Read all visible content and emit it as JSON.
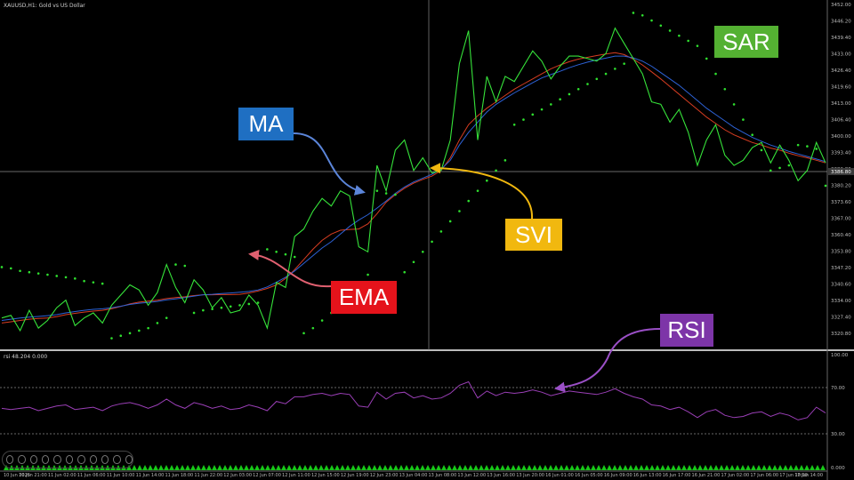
{
  "window": {
    "main_header": "XAUUSD,H1: Gold vs US Dollar",
    "sub_header": "rsi 48.204 0.000"
  },
  "annotations": {
    "ma": "MA",
    "ema": "EMA",
    "svi": "SVI",
    "sar": "SAR",
    "rsi": "RSI"
  },
  "colors": {
    "ma_box": "#1f6fc2",
    "ema_box": "#e5131b",
    "svi_box": "#f1b80f",
    "sar_box": "#54b132",
    "rsi_box": "#7d35a8",
    "price_line": "#36e33a",
    "ma_line": "#2d62d6",
    "ema_line": "#d83d22",
    "sar_dots": "#2fe02f",
    "rsi_line": "#9a3fb6"
  },
  "toolbar_icons": [
    "back-icon",
    "play-icon",
    "forward-icon",
    "pencil-icon",
    "crop-icon",
    "flag-icon",
    "box-icon",
    "rotate-icon",
    "more-icon",
    "smile-icon",
    "expand-icon"
  ],
  "chart_data": [
    {
      "type": "line",
      "panel": "price",
      "y_ticks": [
        "3452.00",
        "3446.20",
        "3439.40",
        "3433.00",
        "3426.40",
        "3419.60",
        "3413.00",
        "3406.40",
        "3400.00",
        "3393.40",
        "3386.80",
        "3380.20",
        "3373.60",
        "3367.00",
        "3360.40",
        "3353.80",
        "3347.20",
        "3340.60",
        "3334.00",
        "3327.40",
        "3320.80"
      ],
      "crosshair_price": "3386.80",
      "x_ticks": [
        "10 Jun 2025",
        "10 Jun 21:00",
        "11 Jun 02:00",
        "11 Jun 06:00",
        "11 Jun 10:00",
        "11 Jun 14:00",
        "11 Jun 18:00",
        "11 Jun 22:00",
        "12 Jun 03:00",
        "12 Jun 07:00",
        "12 Jun 11:00",
        "12 Jun 15:00",
        "12 Jun 19:00",
        "12 Jun 23:00",
        "13 Jun 04:00",
        "13 Jun 08:00",
        "13 Jun 12:00",
        "13 Jun 16:00",
        "13 Jun 20:00",
        "16 Jun 01:00",
        "16 Jun 05:00",
        "16 Jun 09:00",
        "16 Jun 13:00",
        "16 Jun 17:00",
        "16 Jun 21:00",
        "17 Jun 02:00",
        "17 Jun 06:00",
        "17 Jun 10:00",
        "17 Jun 14:00"
      ],
      "series": [
        {
          "values": [
            3328,
            3329,
            3323,
            3331,
            3324,
            3327,
            3332,
            3335,
            3325,
            3328,
            3330,
            3326,
            3333,
            3337,
            3341,
            3339,
            3333,
            3338,
            3349,
            3340,
            3334,
            3343,
            3339,
            3332,
            3336,
            3330,
            3331,
            3337,
            3333,
            3324,
            3342,
            3340,
            3360,
            3363,
            3370,
            3375,
            3372,
            3378,
            3376,
            3356,
            3354,
            3388,
            3378,
            3394,
            3398,
            3386,
            3391,
            3385,
            3386,
            3398,
            3428,
            3441,
            3398,
            3423,
            3413,
            3423,
            3421,
            3427,
            3433,
            3429,
            3422,
            3427,
            3431,
            3431,
            3430,
            3429,
            3432,
            3442,
            3436,
            3430,
            3424,
            3413,
            3412,
            3405,
            3410,
            3401,
            3388,
            3398,
            3404,
            3392,
            3388,
            3390,
            3395,
            3397,
            3389,
            3396,
            3390,
            3382,
            3386,
            3397,
            3389
          ]
        },
        {
          "values": [
            3327,
            3327.5,
            3328,
            3328.3,
            3328.6,
            3328.9,
            3329.3,
            3330,
            3330.5,
            3331,
            3331.4,
            3331.6,
            3332,
            3332.6,
            3333.3,
            3333.8,
            3334.1,
            3334.5,
            3335.1,
            3335.5,
            3336,
            3336.6,
            3337.1,
            3337.3,
            3337.6,
            3337.8,
            3338.1,
            3338.4,
            3339,
            3340.2,
            3342,
            3344,
            3346.5,
            3349.5,
            3352.5,
            3355.5,
            3358,
            3361,
            3364,
            3366.5,
            3368.6,
            3371.2,
            3374,
            3377,
            3379.5,
            3381.5,
            3383,
            3384.5,
            3386.5,
            3390,
            3396,
            3401,
            3405,
            3409,
            3412,
            3414.3,
            3416.5,
            3418.5,
            3420.5,
            3422.4,
            3423.7,
            3425,
            3426.4,
            3427.6,
            3428.6,
            3429.5,
            3430.2,
            3431,
            3431,
            3430.3,
            3429,
            3427,
            3424.5,
            3422,
            3419.5,
            3416.5,
            3413.5,
            3410.5,
            3408,
            3405.5,
            3403,
            3401,
            3399,
            3397.5,
            3396,
            3394.8,
            3393.5,
            3392.5,
            3391.5,
            3390.5,
            3389.5
          ]
        },
        {
          "values": [
            3326,
            3326.5,
            3327,
            3327.5,
            3327.8,
            3328,
            3328.5,
            3329.3,
            3329.8,
            3330.3,
            3330.7,
            3331,
            3331.6,
            3332.5,
            3333.5,
            3334.2,
            3334.6,
            3335,
            3335.6,
            3336,
            3336.3,
            3336.8,
            3337.1,
            3337.1,
            3337.2,
            3337.2,
            3337.3,
            3337.8,
            3338.6,
            3339.6,
            3341,
            3343.5,
            3347,
            3351,
            3355,
            3358.5,
            3361,
            3362.5,
            3362.8,
            3363,
            3365,
            3369,
            3373.5,
            3376.5,
            3379,
            3381,
            3382.5,
            3383.8,
            3386,
            3391,
            3398,
            3404,
            3407.5,
            3410.5,
            3413,
            3415.5,
            3418,
            3420,
            3422,
            3424,
            3426,
            3427.5,
            3428.8,
            3429.8,
            3430.5,
            3431.2,
            3431.8,
            3432.3,
            3431.6,
            3429.8,
            3427.5,
            3424.8,
            3422,
            3419,
            3416,
            3413,
            3410,
            3407,
            3404.5,
            3402,
            3400,
            3398.5,
            3397,
            3396,
            3394.8,
            3394,
            3392.8,
            3391.8,
            3391,
            3390,
            3389
          ]
        },
        {
          "values": [
            3348,
            3347.5,
            3346.5,
            3346,
            3345.5,
            3345,
            3344.5,
            3344,
            3343.5,
            3342.5,
            3342,
            3341.5,
            3320,
            3321,
            3322,
            3323,
            3324,
            3326,
            3328,
            3349,
            3348.5,
            3330,
            3331,
            3331.5,
            3332,
            3332.5,
            3333,
            3333.5,
            3334,
            3355,
            3354,
            3353,
            3352,
            3322,
            3324,
            3327,
            3330,
            3334,
            3338,
            3342,
            3345,
            3378,
            3377,
            3376.5,
            3346,
            3350,
            3354,
            3358,
            3362,
            3366,
            3370,
            3374,
            3378,
            3382,
            3386,
            3390,
            3404,
            3406,
            3408,
            3410,
            3412,
            3414,
            3416,
            3418,
            3420,
            3422,
            3424,
            3426,
            3428,
            3448,
            3447,
            3445,
            3443,
            3441,
            3439,
            3437,
            3435,
            3430,
            3424,
            3418,
            3412,
            3406,
            3400,
            3394,
            3386,
            3387,
            3388,
            3396,
            3395.5,
            3394.5,
            3380
          ]
        },
        {
          "values": [
            52,
            51,
            52,
            53,
            50,
            52,
            54,
            55,
            51,
            52,
            53,
            50,
            54,
            56,
            57,
            55,
            52,
            55,
            60,
            55,
            52,
            57,
            55,
            52,
            54,
            51,
            52,
            55,
            53,
            50,
            58,
            56,
            62,
            62,
            64,
            65,
            63,
            65,
            64,
            54,
            53,
            66,
            60,
            65,
            66,
            61,
            63,
            60,
            61,
            65,
            72,
            75,
            61,
            67,
            63,
            66,
            65,
            66,
            68,
            66,
            63,
            65,
            67,
            66,
            65,
            64,
            66,
            69,
            65,
            62,
            60,
            55,
            54,
            51,
            53,
            49,
            44,
            49,
            51,
            46,
            44,
            45,
            48,
            49,
            45,
            48,
            46,
            42,
            44,
            53,
            48
          ]
        }
      ]
    },
    {
      "type": "line",
      "panel": "rsi",
      "y_ticks": [
        "100.00",
        "70.00",
        "30.00",
        "0.000"
      ],
      "levels": [
        70,
        30
      ]
    }
  ]
}
